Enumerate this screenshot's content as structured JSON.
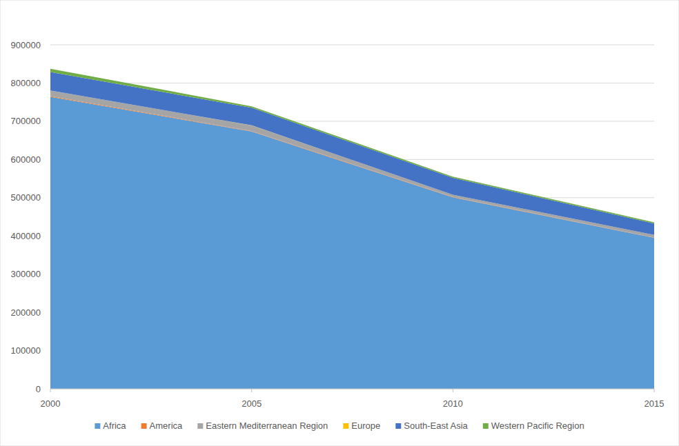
{
  "chart_data": {
    "type": "area",
    "stacked": true,
    "grid": true,
    "legend": "bottom",
    "x": [
      2000,
      2005,
      2010,
      2015
    ],
    "xlim": [
      2000,
      2015
    ],
    "xticks": [
      2000,
      2005,
      2010,
      2015
    ],
    "ylim": [
      0,
      900000
    ],
    "yticks": [
      0,
      100000,
      200000,
      300000,
      400000,
      500000,
      600000,
      700000,
      800000,
      900000
    ],
    "series": [
      {
        "name": "Africa",
        "color": "#5b9bd5",
        "values": [
          764000,
          673000,
          501000,
          395000
        ]
      },
      {
        "name": "America",
        "color": "#ed7d31",
        "values": [
          1500,
          1200,
          900,
          500
        ]
      },
      {
        "name": "Eastern Mediterranean Region",
        "color": "#a5a5a5",
        "values": [
          15000,
          15000,
          6000,
          7000
        ]
      },
      {
        "name": "Europe",
        "color": "#ffc000",
        "values": [
          50,
          20,
          0,
          0
        ]
      },
      {
        "name": "South-East Asia",
        "color": "#4472c4",
        "values": [
          48000,
          46000,
          44000,
          30000
        ]
      },
      {
        "name": "Western Pacific Region",
        "color": "#70ad47",
        "values": [
          9000,
          4000,
          3000,
          3000
        ]
      }
    ]
  }
}
